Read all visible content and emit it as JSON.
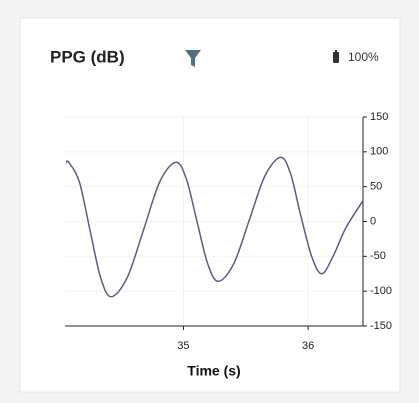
{
  "status": {
    "battery": "100%"
  },
  "chart_data": {
    "type": "line",
    "title": "PPG (dB)",
    "xlabel": "Time (s)",
    "series": [
      {
        "name": "PPG",
        "color": "#5d5a85",
        "x": [
          34.06,
          34.08,
          34.165,
          34.25,
          34.335,
          34.42,
          34.55,
          34.68,
          34.81,
          34.94,
          35.025,
          35.11,
          35.195,
          35.28,
          35.405,
          35.53,
          35.655,
          35.78,
          35.86,
          35.94,
          36.03,
          36.11,
          36.2,
          36.3,
          36.44
        ],
        "values": [
          84,
          85,
          57,
          -12,
          -80,
          -108,
          -80,
          -12,
          57,
          85,
          60,
          -1,
          -61,
          -86,
          -60,
          3,
          66,
          92,
          68,
          9,
          -51,
          -75,
          -50,
          -10,
          30
        ]
      }
    ],
    "xlim": [
      34.05,
      36.44
    ],
    "xticks": [
      35,
      36
    ],
    "ylim": [
      -150,
      150
    ],
    "yticks": [
      -150,
      -100,
      -50,
      0,
      50,
      100,
      150
    ],
    "grid": true
  }
}
